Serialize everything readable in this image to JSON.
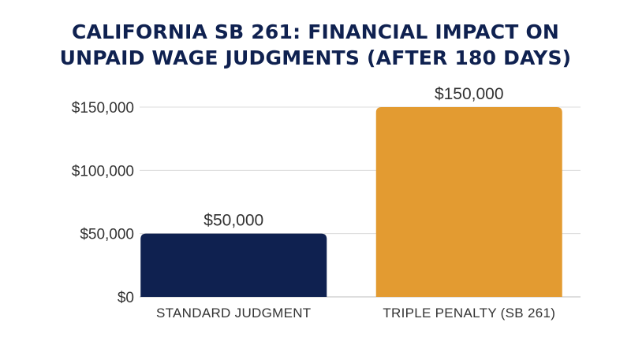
{
  "chart_data": {
    "type": "bar",
    "title_lines": [
      "CALIFORNIA SB 261: FINANCIAL IMPACT ON",
      "UNPAID WAGE JUDGMENTS (AFTER 180 DAYS)"
    ],
    "categories": [
      "STANDARD JUDGMENT",
      "TRIPLE PENALTY (SB 261)"
    ],
    "values": [
      50000,
      150000
    ],
    "data_labels": [
      "$50,000",
      "$150,000"
    ],
    "colors": [
      "#0f2150",
      "#e39b31"
    ],
    "ylim": [
      0,
      150000
    ],
    "yticks": [
      0,
      50000,
      100000,
      150000
    ],
    "ytick_labels": [
      "$0",
      "$50,000",
      "$100,000",
      "$150,000"
    ],
    "grid": true,
    "legend": "none"
  }
}
